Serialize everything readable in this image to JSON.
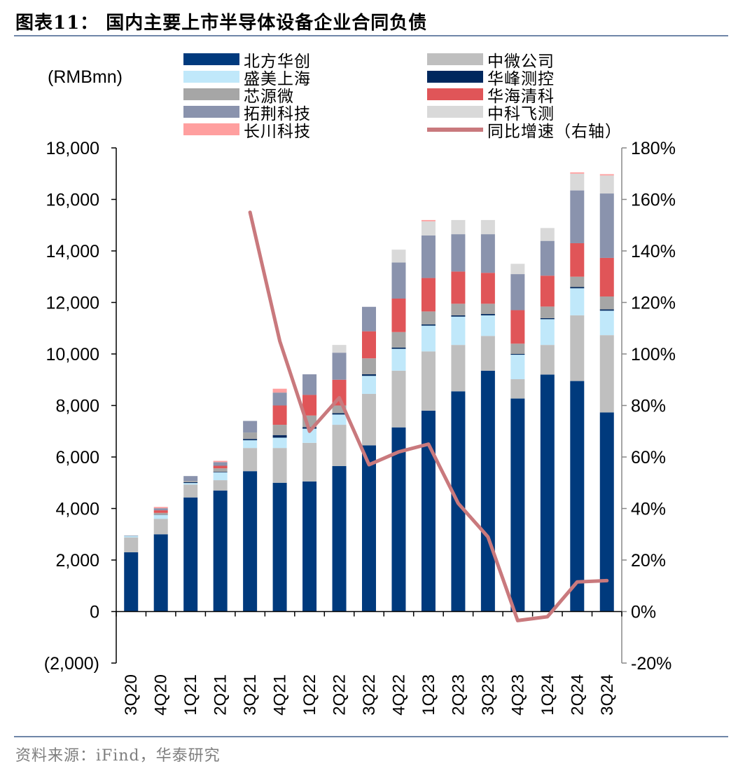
{
  "header": {
    "title": "图表11：  国内主要上市半导体设备企业合同负债"
  },
  "footer": {
    "source": "资料来源：iFind，华泰研究"
  },
  "chart_data": {
    "type": "bar",
    "stacked": true,
    "unit_label": "(RMBmn)",
    "categories": [
      "3Q20",
      "4Q20",
      "1Q21",
      "2Q21",
      "3Q21",
      "4Q21",
      "1Q22",
      "2Q22",
      "3Q22",
      "4Q22",
      "1Q23",
      "2Q23",
      "3Q23",
      "4Q23",
      "1Q24",
      "2Q24",
      "3Q24"
    ],
    "series": [
      {
        "name": "北方华创",
        "color": "#003a7d",
        "values": [
          2300,
          3000,
          4430,
          4700,
          5450,
          5000,
          5050,
          5650,
          6450,
          7150,
          7800,
          8550,
          9350,
          8270,
          9200,
          8950,
          7730
        ]
      },
      {
        "name": "中微公司",
        "color": "#bfbfbf",
        "values": [
          580,
          600,
          500,
          400,
          900,
          1350,
          1500,
          1600,
          2000,
          2200,
          2300,
          1800,
          1350,
          750,
          1150,
          2550,
          3000
        ]
      },
      {
        "name": "盛美上海",
        "color": "#c0e8fa",
        "values": [
          50,
          150,
          60,
          300,
          300,
          400,
          550,
          400,
          700,
          850,
          1000,
          1100,
          800,
          950,
          1000,
          1050,
          950
        ]
      },
      {
        "name": "华峰测控",
        "color": "#00285e",
        "values": [
          10,
          10,
          30,
          20,
          50,
          100,
          60,
          50,
          60,
          50,
          50,
          50,
          50,
          30,
          40,
          50,
          50
        ]
      },
      {
        "name": "芯源微",
        "color": "#a6a6a6",
        "values": [
          0,
          70,
          50,
          140,
          250,
          400,
          450,
          300,
          620,
          600,
          500,
          450,
          400,
          400,
          450,
          400,
          500
        ]
      },
      {
        "name": "华海清科",
        "color": "#e05558",
        "values": [
          0,
          100,
          0,
          100,
          0,
          750,
          800,
          1000,
          1050,
          1300,
          1300,
          1250,
          1200,
          1300,
          1200,
          1300,
          1500
        ]
      },
      {
        "name": "拓荆科技",
        "color": "#8a93ad",
        "values": [
          0,
          80,
          190,
          140,
          450,
          500,
          800,
          1050,
          950,
          1400,
          1650,
          1450,
          1500,
          1400,
          1350,
          2050,
          2500
        ]
      },
      {
        "name": "中科飞测",
        "color": "#d9d9d9",
        "values": [
          0,
          0,
          0,
          0,
          0,
          0,
          0,
          300,
          0,
          500,
          550,
          550,
          550,
          400,
          500,
          650,
          700
        ]
      },
      {
        "name": "长川科技",
        "color": "#ff9f9f",
        "values": [
          0,
          50,
          0,
          50,
          0,
          150,
          0,
          0,
          0,
          0,
          50,
          0,
          0,
          0,
          0,
          50,
          50
        ]
      }
    ],
    "line_series": {
      "name": "同比增速（右轴）",
      "color": "#c9797d",
      "values": [
        null,
        null,
        null,
        null,
        155,
        105,
        70,
        83,
        57,
        62,
        65,
        42,
        29,
        -3.5,
        -2,
        11.5,
        12
      ]
    },
    "y_left": {
      "min": -2000,
      "max": 18000,
      "step": 2000,
      "tick_labels": [
        "(2,000)",
        "0",
        "2,000",
        "4,000",
        "6,000",
        "8,000",
        "10,000",
        "12,000",
        "14,000",
        "16,000",
        "18,000"
      ]
    },
    "y_right": {
      "min": -20,
      "max": 180,
      "step": 20,
      "tick_labels": [
        "-20%",
        "0%",
        "20%",
        "40%",
        "60%",
        "80%",
        "100%",
        "120%",
        "140%",
        "160%",
        "180%"
      ]
    },
    "legend_order": [
      "北方华创",
      "中微公司",
      "盛美上海",
      "华峰测控",
      "芯源微",
      "华海清科",
      "拓荆科技",
      "中科飞测",
      "长川科技",
      "同比增速（右轴）"
    ]
  }
}
